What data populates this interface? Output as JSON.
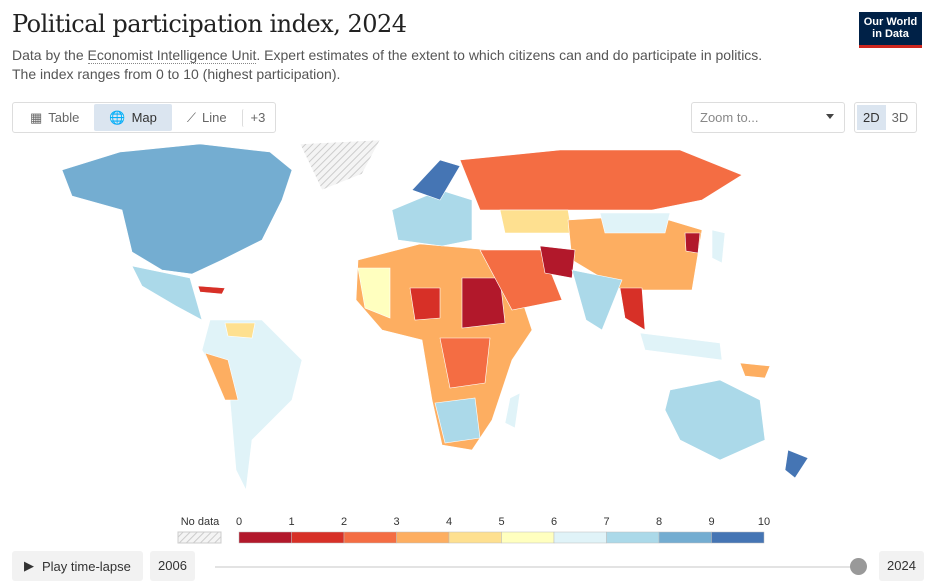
{
  "header": {
    "title": "Political participation index, 2024",
    "subtitle_pre": "Data by the ",
    "source": "Economist Intelligence Unit",
    "subtitle_post": ". Expert estimates of the extent to which citizens can and do participate in politics.",
    "subtitle_line2": "The index ranges from 0 to 10 (highest participation).",
    "logo": "Our World in Data"
  },
  "tabs": [
    {
      "label": "Table",
      "icon": "table-icon"
    },
    {
      "label": "Map",
      "icon": "globe-icon"
    },
    {
      "label": "Line",
      "icon": "line-chart-icon"
    },
    {
      "label": "+3"
    }
  ],
  "zoom": {
    "placeholder": "Zoom to..."
  },
  "view": {
    "2d": "2D",
    "3d": "3D"
  },
  "legend": {
    "no_data": "No data",
    "ticks": [
      "0",
      "1",
      "2",
      "3",
      "4",
      "5",
      "6",
      "7",
      "8",
      "9",
      "10"
    ],
    "colors": [
      "#b2182b",
      "#d73027",
      "#f46d43",
      "#fdae61",
      "#fee090",
      "#ffffbf",
      "#e0f3f8",
      "#abd9e9",
      "#74add1",
      "#4575b4"
    ]
  },
  "timeline": {
    "play": "Play time-lapse",
    "start": "2006",
    "end": "2024",
    "position": 1.0
  }
}
